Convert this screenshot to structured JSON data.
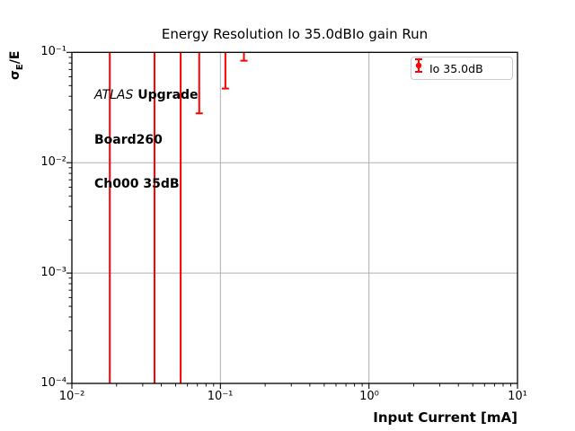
{
  "title": "Energy Resolution Io 35.0dBIo gain Run",
  "annotation": {
    "experiment": "ATLAS",
    "line1_rest": " Upgrade",
    "line2": "Board260",
    "line3": "Ch000 35dB"
  },
  "legend": {
    "entries": [
      {
        "label": "Io 35.0dB",
        "marker": "errorbar-icon",
        "color": "#ff0000"
      }
    ],
    "position": "upper right"
  },
  "axes": {
    "xlabel": "Input Current [mA]",
    "ylabel": {
      "sigma": "σ",
      "sub": "E",
      "rest": "/E"
    },
    "x_tick_labels": [
      "10⁻²",
      "10⁻¹",
      "10⁰",
      "10¹"
    ],
    "y_tick_labels": [
      "10⁻¹",
      "10⁻²",
      "10⁻³",
      "10⁻⁴"
    ]
  },
  "colors": {
    "background": "#ffffff",
    "axes": "#000000",
    "grid": "#b0b0b0",
    "legend_border": "#cccccc",
    "series_red": "#ff0000"
  },
  "chart_data": {
    "type": "scatter",
    "subtype": "errorbar",
    "title": "Energy Resolution Io 35.0dBIo gain Run",
    "xlabel": "Input Current [mA]",
    "ylabel": "sigma_E/E",
    "xscale": "log",
    "yscale": "log",
    "xlim": [
      0.01,
      10
    ],
    "ylim": [
      0.0001,
      0.1
    ],
    "grid": true,
    "legend_position": "upper right",
    "gridline_x": [
      0.1,
      1
    ],
    "gridline_y": [
      0.01,
      0.001
    ],
    "note": "All data-point centers lie above the visible y-range; only lower error-bar arms are visible, clipped at the plot top. err_low=null means the bar extends below the bottom of the axes.",
    "series": [
      {
        "name": "Io 35.0dB",
        "color": "#ff0000",
        "marker": "circle",
        "points": [
          {
            "x": 0.018,
            "err_low": null,
            "err_high": null
          },
          {
            "x": 0.036,
            "err_low": null,
            "err_high": null
          },
          {
            "x": 0.054,
            "err_low": null,
            "err_high": null
          },
          {
            "x": 0.072,
            "err_low": 0.028,
            "err_high": null
          },
          {
            "x": 0.108,
            "err_low": 0.047,
            "err_high": null
          },
          {
            "x": 0.144,
            "err_low": 0.084,
            "err_high": null
          }
        ]
      }
    ]
  }
}
